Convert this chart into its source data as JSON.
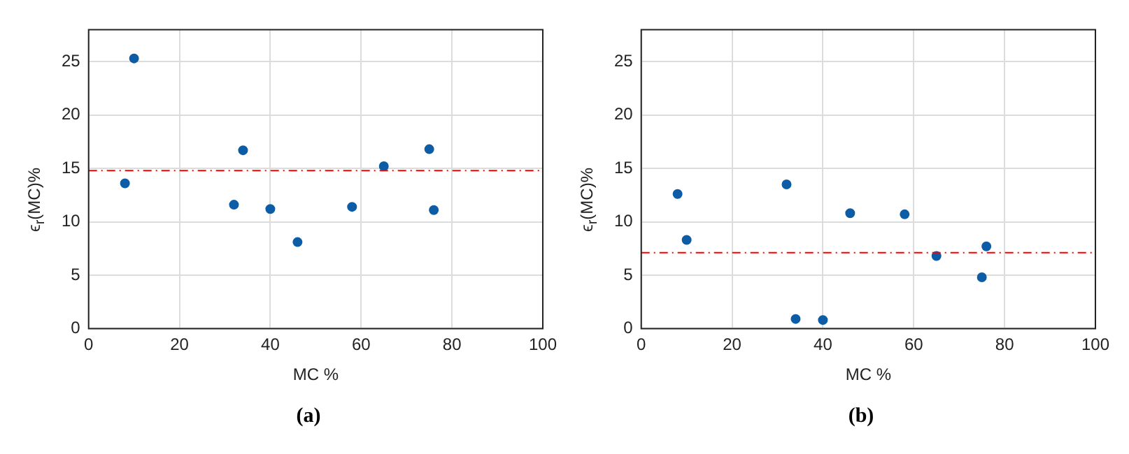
{
  "chart_data": [
    {
      "type": "scatter",
      "xlabel": "MC %",
      "ylabel": "ϵ$_{r}$(MC)%",
      "annotations": [
        "(a)"
      ],
      "xlim": [
        0,
        100
      ],
      "xticks": [
        0,
        20,
        40,
        60,
        80,
        100
      ],
      "ylim": [
        0,
        28
      ],
      "yticks": [
        0,
        5,
        10,
        15,
        20,
        25
      ],
      "grid": true,
      "marker": "circle",
      "x": [
        8,
        10,
        32,
        34,
        40,
        46,
        58,
        65,
        75,
        76
      ],
      "series": [
        {
          "color": "#0c5da5",
          "values": [
            13.6,
            25.3,
            11.6,
            16.7,
            11.2,
            8.1,
            11.4,
            15.2,
            16.8,
            11.1
          ]
        }
      ],
      "ref_lines": [
        {
          "axis": "y",
          "value": 14.8,
          "color": "#ff0000",
          "line_style": "dashdot"
        }
      ]
    },
    {
      "type": "scatter",
      "xlabel": "MC %",
      "ylabel": "ϵ$_{r}$(MC)%",
      "annotations": [
        "(b)"
      ],
      "xlim": [
        0,
        100
      ],
      "xticks": [
        0,
        20,
        40,
        60,
        80,
        100
      ],
      "ylim": [
        0,
        28
      ],
      "yticks": [
        0,
        5,
        10,
        15,
        20,
        25
      ],
      "grid": true,
      "marker": "circle",
      "x": [
        8,
        10,
        32,
        34,
        40,
        46,
        58,
        65,
        75,
        76
      ],
      "series": [
        {
          "color": "#0c5da5",
          "values": [
            12.6,
            8.3,
            13.5,
            0.9,
            0.8,
            10.8,
            10.7,
            6.8,
            4.8,
            7.7
          ]
        }
      ],
      "ref_lines": [
        {
          "axis": "y",
          "value": 7.1,
          "color": "#ff0000",
          "line_style": "dashdot"
        }
      ]
    }
  ]
}
